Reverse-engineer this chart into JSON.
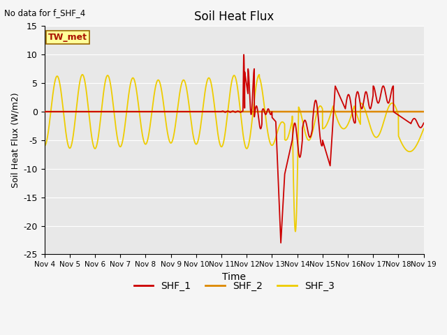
{
  "title": "Soil Heat Flux",
  "xlabel": "Time",
  "ylabel": "Soil Heat Flux (W/m2)",
  "top_left_note": "No data for f_SHF_4",
  "legend_box_label": "TW_met",
  "ylim": [
    -25,
    15
  ],
  "yticks": [
    -25,
    -20,
    -15,
    -10,
    -5,
    0,
    5,
    10,
    15
  ],
  "xtick_labels": [
    "Nov 4",
    "Nov 5",
    "Nov 6",
    "Nov 7",
    "Nov 8",
    "Nov 9",
    "Nov 10",
    "Nov 11",
    "Nov 12",
    "Nov 13",
    "Nov 14",
    "Nov 15",
    "Nov 16",
    "Nov 17",
    "Nov 18",
    "Nov 19"
  ],
  "color_shf1": "#cc0000",
  "color_shf2": "#dd8800",
  "color_shf3": "#eecc00",
  "bg_color": "#e8e8e8",
  "fig_bg_color": "#f5f5f5",
  "legend_entries": [
    "SHF_1",
    "SHF_2",
    "SHF_3"
  ]
}
